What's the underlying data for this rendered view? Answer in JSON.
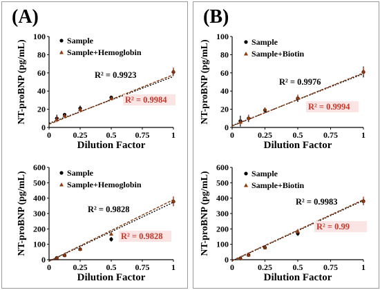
{
  "panels": [
    {
      "label": "(A)",
      "charts": [
        {
          "type": "scatter",
          "xlabel": "Dilution Factor",
          "ylabel": "NT-proBNP (pg/mL)",
          "xlim": [
            0,
            1
          ],
          "ylim": [
            0,
            100
          ],
          "xticks": [
            0,
            0.25,
            0.5,
            0.75,
            1
          ],
          "xtick_labels": [
            "0",
            "0.25",
            "0.5",
            "0.75",
            "1"
          ],
          "yticks": [
            0,
            20,
            40,
            60,
            80,
            100
          ],
          "ytick_labels": [
            "0",
            "20",
            "40",
            "60",
            "80",
            "100"
          ],
          "legend_position": "top-left",
          "series": [
            {
              "name": "Sample",
              "marker": "circle",
              "color": "#000000",
              "x": [
                0.0625,
                0.125,
                0.25,
                0.5,
                1
              ],
              "y": [
                10,
                14,
                21,
                33,
                61
              ],
              "err": [
                4,
                2,
                3,
                2,
                4
              ],
              "fit": [
                4.5,
                56
              ],
              "r2_label": "R² = 0.9923",
              "r2_color": "#000000"
            },
            {
              "name": "Sample+Hemoglobin",
              "marker": "triangle",
              "color": "#8b3a0f",
              "x": [
                0.0625,
                0.125,
                0.25,
                0.5,
                1
              ],
              "y": [
                9,
                13,
                20,
                32,
                62
              ],
              "err": [
                3,
                2,
                2,
                2,
                4
              ],
              "fit": [
                3.5,
                58
              ],
              "r2_label": "R² = 0.9984",
              "r2_color": "#c0392b"
            }
          ]
        },
        {
          "type": "scatter",
          "xlabel": "Dilution Factor",
          "ylabel": "NT-proBNP (pg/mL)",
          "xlim": [
            0,
            1
          ],
          "ylim": [
            0,
            600
          ],
          "xticks": [
            0,
            0.25,
            0.5,
            0.75,
            1
          ],
          "xtick_labels": [
            "0",
            "0.25",
            "0.5",
            "0.75",
            "1"
          ],
          "yticks": [
            0,
            100,
            200,
            300,
            400,
            500,
            600
          ],
          "ytick_labels": [
            "0",
            "100",
            "200",
            "300",
            "400",
            "500",
            "600"
          ],
          "legend_position": "top-left",
          "series": [
            {
              "name": "Sample",
              "marker": "circle",
              "color": "#000000",
              "x": [
                0.0625,
                0.125,
                0.25,
                0.5,
                1
              ],
              "y": [
                12,
                28,
                68,
                133,
                378
              ],
              "err": [
                5,
                5,
                8,
                15,
                30
              ],
              "fit": [
                -10,
                373
              ],
              "r2_label": "R² = 0.9828",
              "r2_color": "#000000"
            },
            {
              "name": "Sample+Hemoglobin",
              "marker": "triangle",
              "color": "#8b3a0f",
              "x": [
                0.0625,
                0.125,
                0.25,
                0.5,
                1
              ],
              "y": [
                13,
                30,
                70,
                168,
                382
              ],
              "err": [
                5,
                5,
                8,
                12,
                30
              ],
              "fit": [
                -10,
                390
              ],
              "r2_label": "R² = 0.9828",
              "r2_color": "#c0392b"
            }
          ]
        }
      ]
    },
    {
      "label": "(B)",
      "charts": [
        {
          "type": "scatter",
          "xlabel": "Dilution Factor",
          "ylabel": "NT-proBNP (pg/mL)",
          "xlim": [
            0,
            1
          ],
          "ylim": [
            0,
            100
          ],
          "xticks": [
            0,
            0.25,
            0.5,
            0.75,
            1
          ],
          "xtick_labels": [
            "0",
            "0.25",
            "0.5",
            "0.75",
            "1"
          ],
          "yticks": [
            0,
            20,
            40,
            60,
            80,
            100
          ],
          "ytick_labels": [
            "0",
            "20",
            "40",
            "60",
            "80",
            "100"
          ],
          "legend_position": "top-left",
          "series": [
            {
              "name": "Sample",
              "marker": "circle",
              "color": "#000000",
              "x": [
                0.0625,
                0.125,
                0.25,
                0.5,
                1
              ],
              "y": [
                7,
                10,
                19,
                32,
                61
              ],
              "err": [
                6,
                4,
                3,
                4,
                6
              ],
              "fit": [
                2,
                59
              ],
              "r2_label": "R² = 0.9976",
              "r2_color": "#000000"
            },
            {
              "name": "Sample+Biotin",
              "marker": "triangle",
              "color": "#8b3a0f",
              "x": [
                0.0625,
                0.125,
                0.25,
                0.5,
                1
              ],
              "y": [
                6,
                11,
                20,
                33,
                62
              ],
              "err": [
                3,
                3,
                2,
                3,
                4
              ],
              "fit": [
                1.5,
                60
              ],
              "r2_label": "R² = 0.9994",
              "r2_color": "#c0392b"
            }
          ]
        },
        {
          "type": "scatter",
          "xlabel": "Dilution Factor",
          "ylabel": "NT-proBNP (pg/mL)",
          "xlim": [
            0,
            1
          ],
          "ylim": [
            0,
            600
          ],
          "xticks": [
            0,
            0.25,
            0.5,
            0.75,
            1
          ],
          "xtick_labels": [
            "0",
            "0.25",
            "0.5",
            "0.75",
            "1"
          ],
          "yticks": [
            0,
            100,
            200,
            300,
            400,
            500,
            600
          ],
          "ytick_labels": [
            "0",
            "100",
            "200",
            "300",
            "400",
            "500",
            "600"
          ],
          "legend_position": "top-left",
          "series": [
            {
              "name": "Sample",
              "marker": "circle",
              "color": "#000000",
              "x": [
                0.0625,
                0.125,
                0.25,
                0.5,
                1
              ],
              "y": [
                8,
                30,
                78,
                170,
                380
              ],
              "err": [
                5,
                6,
                10,
                15,
                25
              ],
              "fit": [
                -8,
                385
              ],
              "r2_label": "R² = 0.9983",
              "r2_color": "#000000"
            },
            {
              "name": "Sample+Biotin",
              "marker": "triangle",
              "color": "#8b3a0f",
              "x": [
                0.0625,
                0.125,
                0.25,
                0.5,
                1
              ],
              "y": [
                10,
                32,
                80,
                185,
                385
              ],
              "err": [
                5,
                6,
                10,
                15,
                25
              ],
              "fit": [
                -6,
                390
              ],
              "r2_label": "R² = 0.99",
              "r2_color": "#c0392b"
            }
          ]
        }
      ]
    }
  ]
}
